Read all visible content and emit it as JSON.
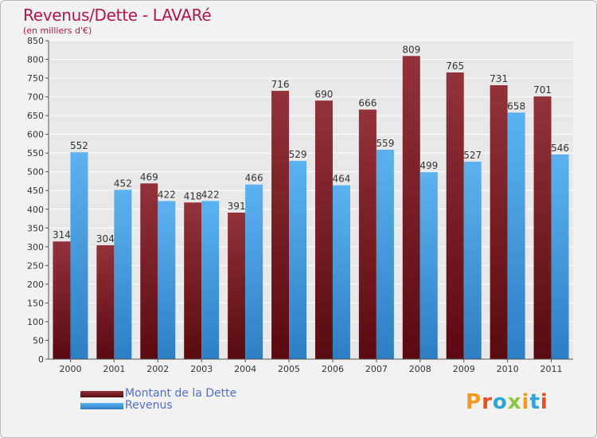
{
  "title": "Revenus/Dette - LAVARé",
  "subtitle": "(en milliers d'€)",
  "logo_text": "Proxiti",
  "colors": {
    "dette": "#7a1a20",
    "revenus": "#4aa3e8",
    "title": "#b5154f",
    "legend_text": "#4f6ed6",
    "axis_text": "#333333",
    "grid": "#ffffff",
    "plot_bg": "#e8e8e8"
  },
  "chart_data": {
    "type": "bar",
    "title": "Revenus/Dette - LAVARé",
    "ylabel": "(en milliers d'€)",
    "xlabel": "",
    "ylim": [
      0,
      850
    ],
    "ytick_step": 50,
    "grid": true,
    "legend_position": "bottom-left",
    "categories": [
      "2000",
      "2001",
      "2002",
      "2003",
      "2004",
      "2005",
      "2006",
      "2007",
      "2008",
      "2009",
      "2010",
      "2011"
    ],
    "series": [
      {
        "name": "Montant de la Dette",
        "values": [
          314,
          304,
          469,
          418,
          391,
          716,
          690,
          666,
          809,
          765,
          731,
          701
        ]
      },
      {
        "name": "Revenus",
        "values": [
          552,
          452,
          422,
          422,
          466,
          529,
          464,
          559,
          499,
          527,
          658,
          546
        ]
      }
    ]
  }
}
